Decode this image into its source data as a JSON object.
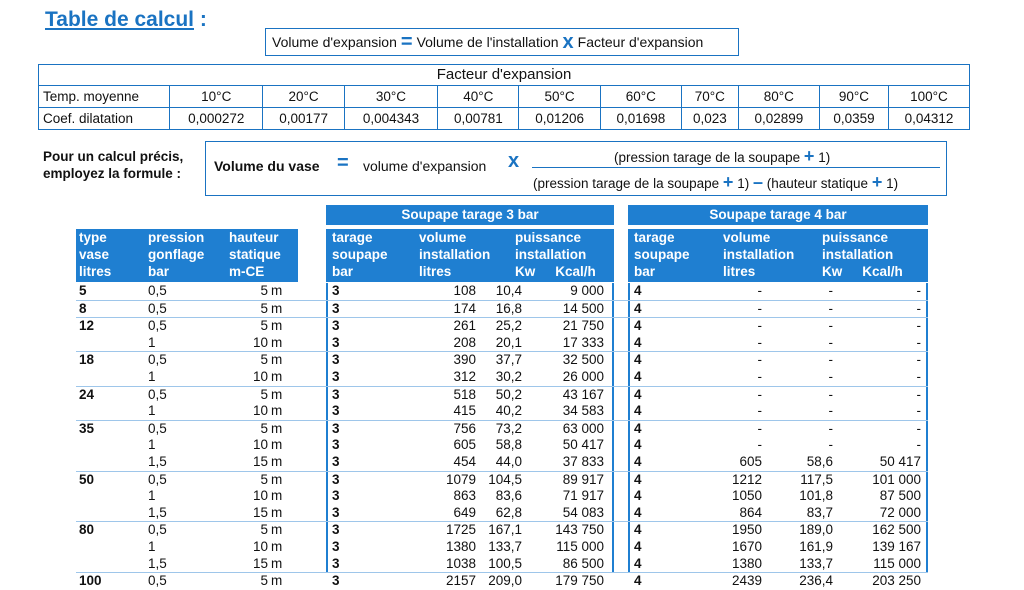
{
  "title": "Table de calcul",
  "title_colon": ":",
  "top_formula": {
    "left": "Volume d'expansion",
    "eq": "=",
    "middle": "Volume de l'installation",
    "times": "x",
    "right": "Facteur d'expansion"
  },
  "factor_table": {
    "header": "Facteur d'expansion",
    "row1_label": "Temp. moyenne",
    "row2_label": "Coef. dilatation",
    "temps": [
      "10°C",
      "20°C",
      "30°C",
      "40°C",
      "50°C",
      "60°C",
      "70°C",
      "80°C",
      "90°C",
      "100°C"
    ],
    "coefs": [
      "0,000272",
      "0,00177",
      "0,004343",
      "0,00781",
      "0,01206",
      "0,01698",
      "0,023",
      "0,02899",
      "0,0359",
      "0,04312"
    ]
  },
  "precise": {
    "label_line1": "Pour un calcul précis,",
    "label_line2": "employez la formule :",
    "vol_vase": "Volume du vase",
    "eq": "=",
    "vol_exp": "volume d'expansion",
    "times": "x",
    "num_a": "(pression tarage de la soupape",
    "plus": "+",
    "num_b": "1)",
    "den_a": "(pression tarage de la soupape",
    "den_b": "1)",
    "minus": "–",
    "den_c": "(hauteur statique",
    "den_d": "1)"
  },
  "headers": {
    "mid_bar": "Soupape tarage 3 bar",
    "right_bar": "Soupape tarage 4 bar",
    "type": [
      "type",
      "vase",
      "litres"
    ],
    "pression": [
      "pression",
      "gonflage",
      "bar"
    ],
    "hauteur": [
      "hauteur",
      "statique",
      "m-CE"
    ],
    "tarage": [
      "tarage",
      "soupape",
      "bar"
    ],
    "volume": [
      "volume",
      "installation",
      "litres"
    ],
    "puissance": [
      "puissance",
      "installation"
    ],
    "kw": "Kw",
    "kcal": "Kcal/h"
  },
  "rows": [
    {
      "v": "5",
      "g": "0,5",
      "h": "5",
      "t3": "3",
      "vi3": "108",
      "kw3": "10,4",
      "kc3": "9 000",
      "t4": "4",
      "vi4": "-",
      "kw4": "-",
      "kc4": "-",
      "sep": false
    },
    {
      "v": "8",
      "g": "0,5",
      "h": "5",
      "t3": "3",
      "vi3": "174",
      "kw3": "16,8",
      "kc3": "14 500",
      "t4": "4",
      "vi4": "-",
      "kw4": "-",
      "kc4": "-",
      "sep": true
    },
    {
      "v": "12",
      "g": "0,5",
      "h": "5",
      "t3": "3",
      "vi3": "261",
      "kw3": "25,2",
      "kc3": "21 750",
      "t4": "4",
      "vi4": "-",
      "kw4": "-",
      "kc4": "-",
      "sep": true
    },
    {
      "v": "",
      "g": "1",
      "h": "10",
      "t3": "3",
      "vi3": "208",
      "kw3": "20,1",
      "kc3": "17 333",
      "t4": "4",
      "vi4": "-",
      "kw4": "-",
      "kc4": "-",
      "sep": false
    },
    {
      "v": "18",
      "g": "0,5",
      "h": "5",
      "t3": "3",
      "vi3": "390",
      "kw3": "37,7",
      "kc3": "32 500",
      "t4": "4",
      "vi4": "-",
      "kw4": "-",
      "kc4": "-",
      "sep": true
    },
    {
      "v": "",
      "g": "1",
      "h": "10",
      "t3": "3",
      "vi3": "312",
      "kw3": "30,2",
      "kc3": "26 000",
      "t4": "4",
      "vi4": "-",
      "kw4": "-",
      "kc4": "-",
      "sep": false
    },
    {
      "v": "24",
      "g": "0,5",
      "h": "5",
      "t3": "3",
      "vi3": "518",
      "kw3": "50,2",
      "kc3": "43 167",
      "t4": "4",
      "vi4": "-",
      "kw4": "-",
      "kc4": "-",
      "sep": true
    },
    {
      "v": "",
      "g": "1",
      "h": "10",
      "t3": "3",
      "vi3": "415",
      "kw3": "40,2",
      "kc3": "34 583",
      "t4": "4",
      "vi4": "-",
      "kw4": "-",
      "kc4": "-",
      "sep": false
    },
    {
      "v": "35",
      "g": "0,5",
      "h": "5",
      "t3": "3",
      "vi3": "756",
      "kw3": "73,2",
      "kc3": "63 000",
      "t4": "4",
      "vi4": "-",
      "kw4": "-",
      "kc4": "-",
      "sep": true
    },
    {
      "v": "",
      "g": "1",
      "h": "10",
      "t3": "3",
      "vi3": "605",
      "kw3": "58,8",
      "kc3": "50 417",
      "t4": "4",
      "vi4": "-",
      "kw4": "-",
      "kc4": "-",
      "sep": false
    },
    {
      "v": "",
      "g": "1,5",
      "h": "15",
      "t3": "3",
      "vi3": "454",
      "kw3": "44,0",
      "kc3": "37 833",
      "t4": "4",
      "vi4": "605",
      "kw4": "58,6",
      "kc4": "50 417",
      "sep": false
    },
    {
      "v": "50",
      "g": "0,5",
      "h": "5",
      "t3": "3",
      "vi3": "1079",
      "kw3": "104,5",
      "kc3": "89 917",
      "t4": "4",
      "vi4": "1212",
      "kw4": "117,5",
      "kc4": "101 000",
      "sep": true
    },
    {
      "v": "",
      "g": "1",
      "h": "10",
      "t3": "3",
      "vi3": "863",
      "kw3": "83,6",
      "kc3": "71 917",
      "t4": "4",
      "vi4": "1050",
      "kw4": "101,8",
      "kc4": "87 500",
      "sep": false
    },
    {
      "v": "",
      "g": "1,5",
      "h": "15",
      "t3": "3",
      "vi3": "649",
      "kw3": "62,8",
      "kc3": "54 083",
      "t4": "4",
      "vi4": "864",
      "kw4": "83,7",
      "kc4": "72 000",
      "sep": false
    },
    {
      "v": "80",
      "g": "0,5",
      "h": "5",
      "t3": "3",
      "vi3": "1725",
      "kw3": "167,1",
      "kc3": "143 750",
      "t4": "4",
      "vi4": "1950",
      "kw4": "189,0",
      "kc4": "162 500",
      "sep": true
    },
    {
      "v": "",
      "g": "1",
      "h": "10",
      "t3": "3",
      "vi3": "1380",
      "kw3": "133,7",
      "kc3": "115 000",
      "t4": "4",
      "vi4": "1670",
      "kw4": "161,9",
      "kc4": "139 167",
      "sep": false
    },
    {
      "v": "",
      "g": "1,5",
      "h": "15",
      "t3": "3",
      "vi3": "1038",
      "kw3": "100,5",
      "kc3": "86 500",
      "t4": "4",
      "vi4": "1380",
      "kw4": "133,7",
      "kc4": "115 000",
      "sep": false
    },
    {
      "v": "100",
      "g": "0,5",
      "h": "5",
      "t3": "3",
      "vi3": "2157",
      "kw3": "209,0",
      "kc3": "179 750",
      "t4": "4",
      "vi4": "2439",
      "kw4": "236,4",
      "kc4": "203 250",
      "sep": true
    }
  ],
  "unit_m": "m"
}
